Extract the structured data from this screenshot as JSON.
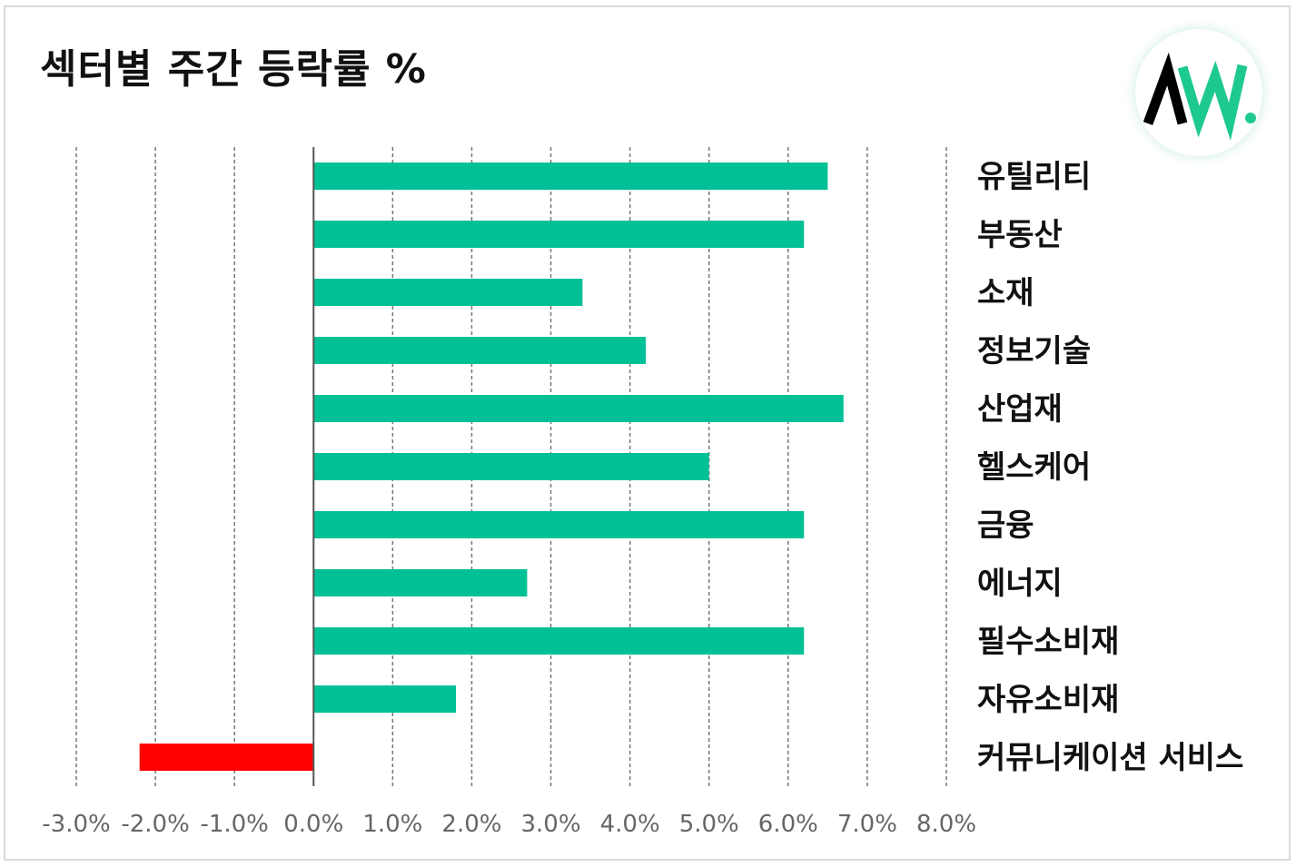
{
  "title": "섹터별 주간 등락률 %",
  "logo": {
    "icon": "aw-logo-icon",
    "text": "AW.",
    "colors": {
      "dark": "#000000",
      "green": "#1ec990"
    }
  },
  "colors": {
    "positive": "#00c096",
    "negative": "#ff0000",
    "grid": "#777777",
    "axis": "#555555"
  },
  "chart_data": {
    "type": "bar",
    "orientation": "horizontal",
    "title": "섹터별 주간 등락률 %",
    "categories": [
      "유틸리티",
      "부동산",
      "소재",
      "정보기술",
      "산업재",
      "헬스케어",
      "금융",
      "에너지",
      "필수소비재",
      "자유소비재",
      "커뮤니케이션 서비스"
    ],
    "values": [
      6.5,
      6.2,
      3.4,
      4.2,
      6.7,
      5.0,
      6.2,
      2.7,
      6.2,
      1.8,
      -2.2
    ],
    "xlim": [
      -3.0,
      8.0
    ],
    "xticks": [
      -3.0,
      -2.0,
      -1.0,
      0.0,
      1.0,
      2.0,
      3.0,
      4.0,
      5.0,
      6.0,
      7.0,
      8.0
    ],
    "tick_labels": [
      "-3.0%",
      "-2.0%",
      "-1.0%",
      "0.0%",
      "1.0%",
      "2.0%",
      "3.0%",
      "4.0%",
      "5.0%",
      "6.0%",
      "7.0%",
      "8.0%"
    ],
    "category_axis": "right",
    "grid": true,
    "legend": "none"
  }
}
